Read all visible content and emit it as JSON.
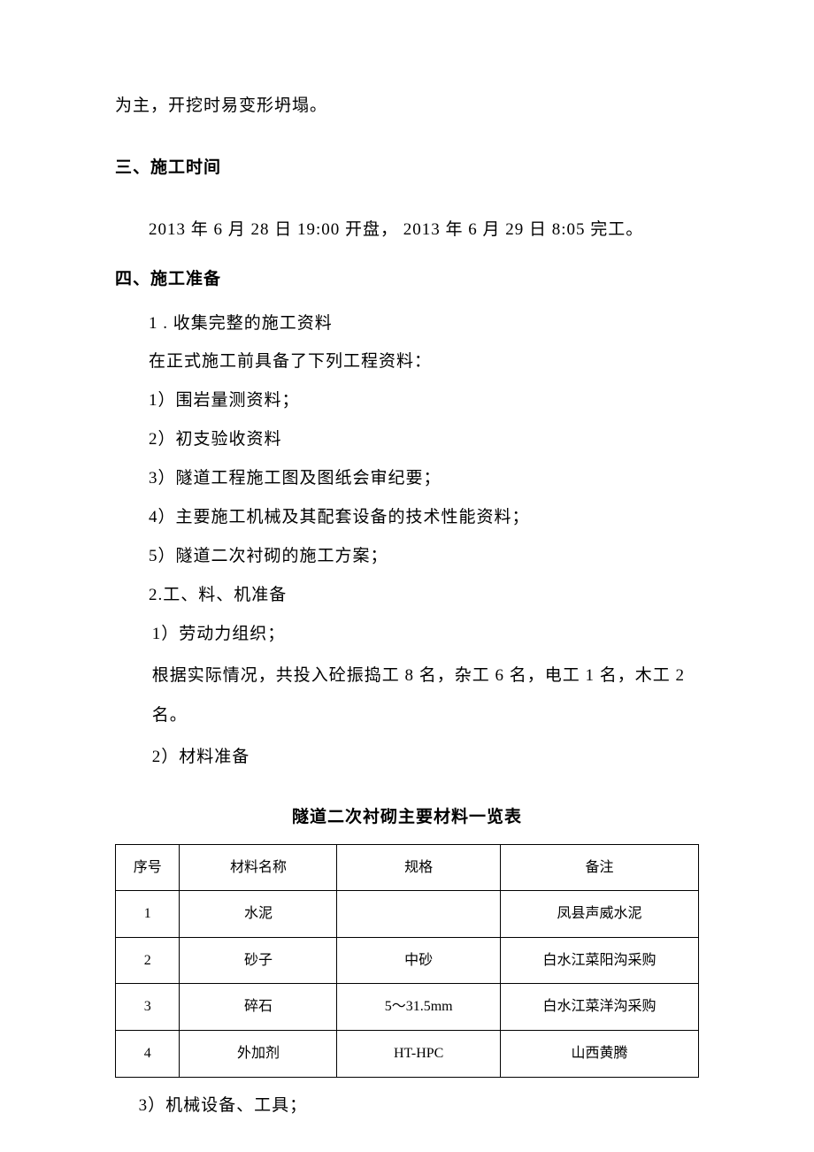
{
  "continuation": "为主，开挖时易变形坍塌。",
  "section3": {
    "heading": "三、施工时间",
    "body": "2013 年 6 月 28 日 19:00 开盘， 2013 年 6 月 29 日 8:05 完工。"
  },
  "section4": {
    "heading": "四、施工准备",
    "item1": {
      "title": "1 . 收集完整的施工资料",
      "intro": "在正式施工前具备了下列工程资料：",
      "sub1": "1）围岩量测资料；",
      "sub2": "2）初支验收资料",
      "sub3": "3）隧道工程施工图及图纸会审纪要；",
      "sub4": "4）主要施工机械及其配套设备的技术性能资料；",
      "sub5": "5）隧道二次衬砌的施工方案；"
    },
    "item2": {
      "title": "2.工、料、机准备",
      "sub1_title": "1）劳动力组织；",
      "sub1_body": "根据实际情况，共投入砼振捣工 8 名，杂工 6 名，电工 1 名，木工 2 名。",
      "sub2_title": "2）材料准备",
      "sub3_title": "3）机械设备、工具；"
    }
  },
  "table": {
    "title": "隧道二次衬砌主要材料一览表",
    "columns": [
      "序号",
      "材料名称",
      "规格",
      "备注"
    ],
    "rows": [
      [
        "1",
        "水泥",
        "",
        "凤县声威水泥"
      ],
      [
        "2",
        "砂子",
        "中砂",
        "白水江菜阳沟采购"
      ],
      [
        "3",
        "碎石",
        "5～31.5mm",
        "白水江菜洋沟采购"
      ],
      [
        "4",
        "外加剂",
        "HT-HPC",
        "山西黄腾"
      ]
    ],
    "border_color": "#000000",
    "background_color": "#ffffff",
    "header_fontsize": 16,
    "cell_fontsize": 16
  },
  "colors": {
    "text": "#000000",
    "background": "#ffffff"
  },
  "typography": {
    "body_fontsize": 19,
    "heading_fontsize": 19,
    "body_font": "SimSun",
    "heading_font": "SimHei"
  }
}
